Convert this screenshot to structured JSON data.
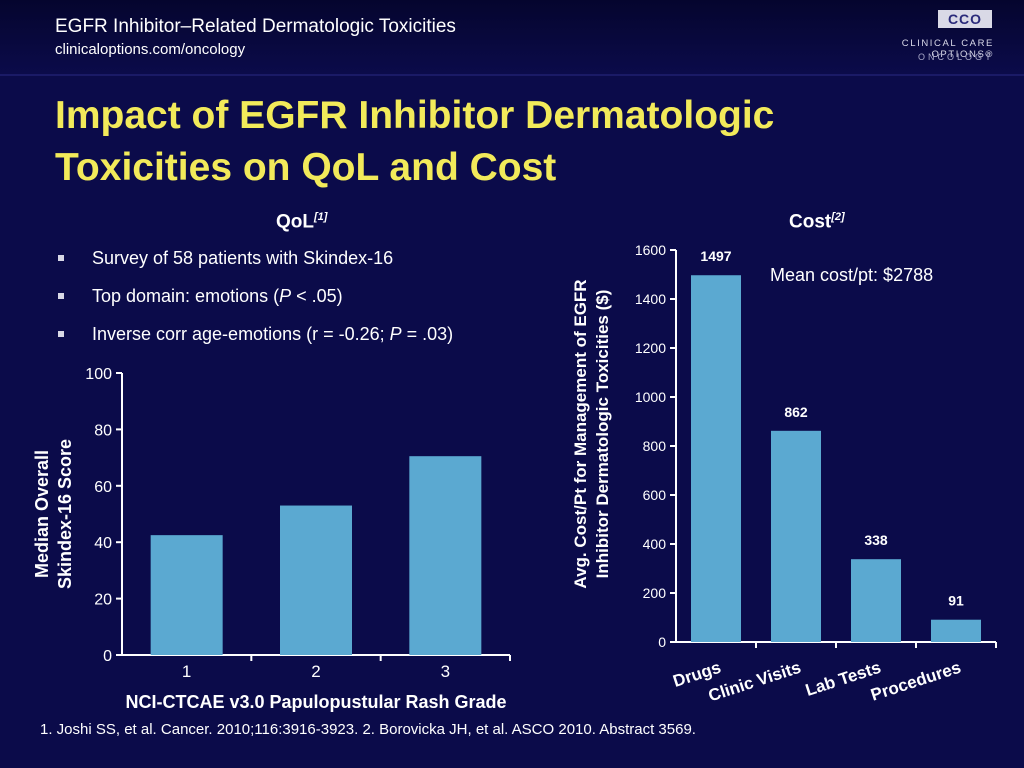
{
  "header": {
    "title": "EGFR Inhibitor–Related Dermatologic Toxicities",
    "url": "clinicaloptions.com/oncology",
    "logo_mark": "CCO",
    "logo_text": "CLINICAL CARE OPTIONS®",
    "logo_sub": "ONCOLOGY"
  },
  "title_line1": "Impact of EGFR Inhibitor Dermatologic",
  "title_line2": "Toxicities on QoL and Cost",
  "qol": {
    "heading": "QoL",
    "ref": "[1]",
    "bullets": [
      {
        "pre": "Survey of 58 patients with Skindex-16",
        "italic": "",
        "post": ""
      },
      {
        "pre": "Top domain: emotions (",
        "italic": "P",
        "post": " < .05)"
      },
      {
        "pre": "Inverse corr age-emotions (r = -0.26; ",
        "italic": "P",
        "post": " = .03)"
      }
    ]
  },
  "cost": {
    "heading": "Cost",
    "ref": "[2]",
    "note": "Mean cost/pt: $2788"
  },
  "chart_data": [
    {
      "type": "bar",
      "categories": [
        "1",
        "2",
        "3"
      ],
      "values": [
        42.5,
        53,
        70.5
      ],
      "xlabel": "NCI-CTCAE v3.0 Papulopustular Rash Grade",
      "ylabel_line1": "Median Overall",
      "ylabel_line2": "Skindex-16 Score",
      "ylim": [
        0,
        100
      ],
      "yticks": [
        0,
        20,
        40,
        60,
        80,
        100
      ],
      "bar_color": "#5ba9d1"
    },
    {
      "type": "bar",
      "categories": [
        "Drugs",
        "Clinic Visits",
        "Lab Tests",
        "Procedures"
      ],
      "values": [
        1497,
        862,
        338,
        91
      ],
      "data_labels": [
        "1497",
        "862",
        "338",
        "91"
      ],
      "ylabel_line1": "Avg. Cost/Pt for Management of EGFR",
      "ylabel_line2": "Inhibitor Dermatologic Toxicities ($)",
      "ylim": [
        0,
        1600
      ],
      "yticks": [
        0,
        200,
        400,
        600,
        800,
        1000,
        1200,
        1400,
        1600
      ],
      "bar_color": "#5ba9d1"
    }
  ],
  "footer": "1. Joshi SS, et al. Cancer. 2010;116:3916-3923. 2. Borovicka JH, et al. ASCO 2010. Abstract 3569."
}
